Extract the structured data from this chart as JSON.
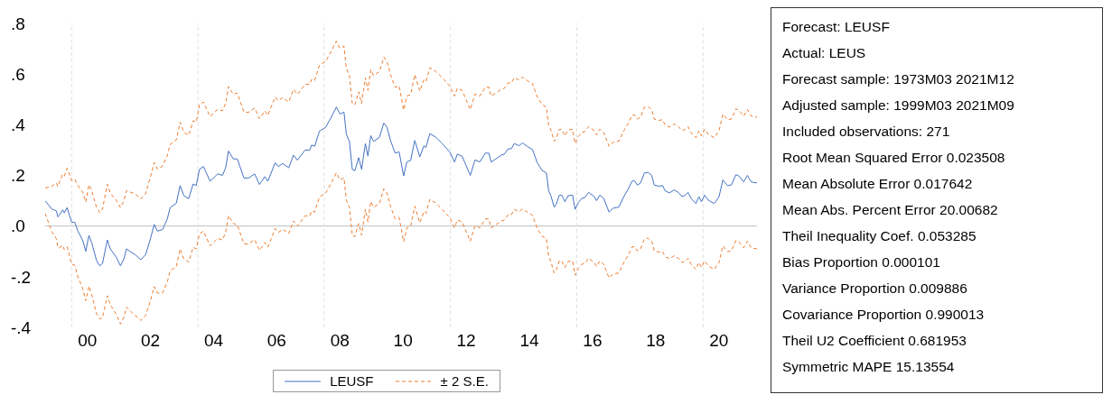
{
  "chart_data": {
    "type": "line",
    "x": [
      "1999-03-01",
      "1999-05-17",
      "1999-07-08",
      "1999-07-26",
      "1999-08-14",
      "1999-09-20",
      "1999-10-08",
      "1999-11-10",
      "2000-01-01",
      "2000-02-07",
      "2000-03-13",
      "2000-05-07",
      "2000-06-13",
      "2000-07-19",
      "2000-08-21",
      "2000-10-15",
      "2000-11-21",
      "2000-12-23",
      "2001-02-17",
      "2001-03-23",
      "2001-06-02",
      "2001-07-19",
      "2001-08-28",
      "2001-09-27",
      "2001-11-10",
      "2002-01-01",
      "2002-03-13",
      "2002-05-07",
      "2002-06-27",
      "2002-08-14",
      "2002-09-20",
      "2002-11-17",
      "2003-01-11",
      "2003-02-14",
      "2003-04-26",
      "2003-06-09",
      "2003-07-22",
      "2003-09-16",
      "2003-11-07",
      "2003-12-13",
      "2004-01-19",
      "2004-03-05",
      "2004-05-21",
      "2004-08-17",
      "2004-10-11",
      "2004-11-17",
      "2004-12-20",
      "2005-02-14",
      "2005-04-01",
      "2005-06-16",
      "2005-08-07",
      "2005-10-19",
      "2005-12-13",
      "2006-02-14",
      "2006-03-20",
      "2006-06-13",
      "2006-07-19",
      "2006-09-09",
      "2006-11-17",
      "2007-01-11",
      "2007-02-25",
      "2007-05-25",
      "2007-07-19",
      "2007-08-10",
      "2007-09-13",
      "2007-11-07",
      "2008-01-19",
      "2008-03-27",
      "2008-05-21",
      "2008-07-01",
      "2008-08-17",
      "2008-09-13",
      "2008-10-19",
      "2008-11-21",
      "2008-12-20",
      "2009-02-03",
      "2009-03-09",
      "2009-04-22",
      "2009-05-21",
      "2009-06-23",
      "2009-07-26",
      "2009-10-01",
      "2009-11-21",
      "2009-12-27",
      "2010-02-10",
      "2010-04-01",
      "2010-05-17",
      "2010-07-08",
      "2010-08-14",
      "2010-09-27",
      "2010-11-14",
      "2011-01-11",
      "2011-02-28",
      "2011-03-23",
      "2011-05-07",
      "2011-07-15",
      "2011-09-27",
      "2011-12-23",
      "2012-02-17",
      "2012-03-20",
      "2012-05-14",
      "2012-06-20",
      "2012-08-17",
      "2012-10-11",
      "2012-12-05",
      "2013-02-07",
      "2013-03-20",
      "2013-04-15",
      "2013-06-09",
      "2013-08-10",
      "2013-09-16",
      "2013-10-29",
      "2013-12-05",
      "2014-01-08",
      "2014-03-02",
      "2014-04-15",
      "2014-06-13",
      "2014-08-07",
      "2014-10-01",
      "2014-11-25",
      "2015-01-15",
      "2015-02-10",
      "2015-03-05",
      "2015-04-15",
      "2015-05-10",
      "2015-06-13",
      "2015-07-11",
      "2015-08-17",
      "2015-09-23",
      "2015-11-14",
      "2015-12-13",
      "2016-01-19",
      "2016-03-02",
      "2016-04-01",
      "2016-05-17",
      "2016-07-22",
      "2016-08-17",
      "2016-09-23",
      "2016-11-07",
      "2017-01-08",
      "2017-02-21",
      "2017-05-03",
      "2017-06-23",
      "2017-08-17",
      "2017-10-01",
      "2017-10-29",
      "2017-12-02",
      "2018-01-08",
      "2018-02-21",
      "2018-04-04",
      "2018-05-17",
      "2018-06-16",
      "2018-08-07",
      "2018-09-20",
      "2018-10-19",
      "2018-12-09",
      "2019-02-03",
      "2019-03-27",
      "2019-05-03",
      "2019-06-09",
      "2019-07-11",
      "2019-08-17",
      "2019-10-11",
      "2019-11-14",
      "2019-12-13",
      "2020-01-19",
      "2020-03-02",
      "2020-05-10",
      "2020-07-04",
      "2020-08-17",
      "2020-10-11",
      "2020-11-25",
      "2021-01-15",
      "2021-02-21",
      "2021-04-15",
      "2021-05-28",
      "2021-07-11",
      "2021-09-16"
    ],
    "series": [
      {
        "name": "LEUSF",
        "color": "#4472c4",
        "line_style": "solid",
        "values": [
          0.1,
          0.067,
          0.06,
          0.036,
          0.044,
          0.064,
          0.052,
          0.073,
          0.015,
          0.015,
          -0.02,
          -0.055,
          -0.1,
          -0.037,
          -0.066,
          -0.136,
          -0.157,
          -0.148,
          -0.055,
          -0.09,
          -0.124,
          -0.157,
          -0.13,
          -0.09,
          -0.101,
          -0.112,
          -0.133,
          -0.112,
          -0.055,
          0.006,
          -0.02,
          -0.014,
          0.027,
          0.073,
          0.09,
          0.16,
          0.12,
          0.108,
          0.166,
          0.16,
          0.224,
          0.235,
          0.177,
          0.206,
          0.2,
          0.23,
          0.296,
          0.265,
          0.265,
          0.19,
          0.189,
          0.206,
          0.164,
          0.195,
          0.177,
          0.25,
          0.235,
          0.247,
          0.23,
          0.28,
          0.26,
          0.3,
          0.3,
          0.32,
          0.315,
          0.375,
          0.39,
          0.433,
          0.47,
          0.442,
          0.45,
          0.363,
          0.334,
          0.224,
          0.218,
          0.27,
          0.224,
          0.326,
          0.276,
          0.357,
          0.334,
          0.35,
          0.407,
          0.39,
          0.334,
          0.288,
          0.293,
          0.198,
          0.253,
          0.259,
          0.338,
          0.273,
          0.317,
          0.31,
          0.365,
          0.351,
          0.326,
          0.293,
          0.253,
          0.284,
          0.276,
          0.247,
          0.2,
          0.261,
          0.253,
          0.288,
          0.288,
          0.253,
          0.265,
          0.28,
          0.284,
          0.305,
          0.305,
          0.326,
          0.317,
          0.328,
          0.313,
          0.302,
          0.25,
          0.22,
          0.209,
          0.139,
          0.122,
          0.075,
          0.087,
          0.122,
          0.122,
          0.096,
          0.12,
          0.122,
          0.066,
          0.093,
          0.11,
          0.112,
          0.133,
          0.116,
          0.1,
          0.122,
          0.11,
          0.055,
          0.07,
          0.075,
          0.113,
          0.145,
          0.177,
          0.179,
          0.162,
          0.17,
          0.209,
          0.212,
          0.2,
          0.162,
          0.157,
          0.16,
          0.139,
          0.131,
          0.143,
          0.131,
          0.116,
          0.122,
          0.133,
          0.108,
          0.089,
          0.116,
          0.096,
          0.122,
          0.102,
          0.089,
          0.116,
          0.182,
          0.159,
          0.163,
          0.203,
          0.197,
          0.174,
          0.2,
          0.174,
          0.17
        ]
      },
      {
        "name": "± 2 S.E.",
        "color": "#ed7d31",
        "line_style": "dashed",
        "values": [
          0.15,
          0.157,
          0.17,
          0.156,
          0.174,
          0.204,
          0.197,
          0.228,
          0.18,
          0.185,
          0.16,
          0.135,
          0.095,
          0.163,
          0.139,
          0.074,
          0.053,
          0.067,
          0.165,
          0.13,
          0.101,
          0.073,
          0.1,
          0.14,
          0.134,
          0.128,
          0.107,
          0.128,
          0.19,
          0.251,
          0.225,
          0.236,
          0.277,
          0.323,
          0.34,
          0.41,
          0.37,
          0.358,
          0.416,
          0.41,
          0.479,
          0.49,
          0.432,
          0.461,
          0.455,
          0.485,
          0.551,
          0.52,
          0.525,
          0.45,
          0.449,
          0.466,
          0.424,
          0.455,
          0.437,
          0.51,
          0.495,
          0.507,
          0.49,
          0.54,
          0.52,
          0.56,
          0.56,
          0.58,
          0.575,
          0.635,
          0.65,
          0.693,
          0.73,
          0.702,
          0.71,
          0.623,
          0.594,
          0.484,
          0.478,
          0.53,
          0.484,
          0.586,
          0.536,
          0.617,
          0.594,
          0.61,
          0.667,
          0.65,
          0.594,
          0.548,
          0.553,
          0.458,
          0.513,
          0.519,
          0.598,
          0.533,
          0.577,
          0.57,
          0.625,
          0.611,
          0.586,
          0.553,
          0.513,
          0.544,
          0.536,
          0.507,
          0.46,
          0.521,
          0.513,
          0.548,
          0.548,
          0.513,
          0.525,
          0.54,
          0.544,
          0.565,
          0.565,
          0.586,
          0.577,
          0.588,
          0.573,
          0.562,
          0.51,
          0.48,
          0.469,
          0.399,
          0.382,
          0.335,
          0.347,
          0.382,
          0.382,
          0.356,
          0.38,
          0.382,
          0.326,
          0.353,
          0.37,
          0.372,
          0.393,
          0.376,
          0.36,
          0.382,
          0.37,
          0.315,
          0.33,
          0.335,
          0.373,
          0.405,
          0.437,
          0.439,
          0.422,
          0.43,
          0.469,
          0.472,
          0.46,
          0.422,
          0.417,
          0.42,
          0.399,
          0.391,
          0.403,
          0.391,
          0.376,
          0.382,
          0.393,
          0.368,
          0.349,
          0.376,
          0.356,
          0.382,
          0.362,
          0.349,
          0.376,
          0.442,
          0.419,
          0.423,
          0.463,
          0.457,
          0.434,
          0.46,
          0.434,
          0.43
        ]
      },
      {
        "color": "#ed7d31",
        "line_style": "dashed",
        "values": [
          0.05,
          -0.023,
          -0.05,
          -0.084,
          -0.086,
          -0.076,
          -0.093,
          -0.082,
          -0.15,
          -0.155,
          -0.2,
          -0.245,
          -0.295,
          -0.237,
          -0.271,
          -0.346,
          -0.367,
          -0.363,
          -0.275,
          -0.31,
          -0.349,
          -0.387,
          -0.36,
          -0.32,
          -0.336,
          -0.352,
          -0.373,
          -0.352,
          -0.3,
          -0.239,
          -0.265,
          -0.264,
          -0.223,
          -0.177,
          -0.16,
          -0.09,
          -0.13,
          -0.142,
          -0.084,
          -0.09,
          -0.031,
          -0.02,
          -0.078,
          -0.049,
          -0.055,
          -0.025,
          0.041,
          0.01,
          0.005,
          -0.07,
          -0.071,
          -0.054,
          -0.096,
          -0.065,
          -0.083,
          -0.01,
          -0.025,
          -0.013,
          -0.03,
          0.02,
          0.0,
          0.04,
          0.04,
          0.06,
          0.055,
          0.115,
          0.13,
          0.173,
          0.21,
          0.182,
          0.19,
          0.103,
          0.074,
          -0.036,
          -0.042,
          0.01,
          -0.036,
          0.066,
          0.016,
          0.097,
          0.074,
          0.09,
          0.147,
          0.13,
          0.074,
          0.028,
          0.033,
          -0.062,
          -0.007,
          -0.001,
          0.078,
          0.013,
          0.057,
          0.05,
          0.105,
          0.091,
          0.066,
          0.033,
          -0.007,
          0.024,
          0.016,
          -0.013,
          -0.06,
          0.001,
          -0.007,
          0.028,
          0.028,
          -0.007,
          0.005,
          0.02,
          0.024,
          0.045,
          0.045,
          0.066,
          0.057,
          0.068,
          0.053,
          0.042,
          -0.01,
          -0.04,
          -0.051,
          -0.121,
          -0.138,
          -0.185,
          -0.173,
          -0.138,
          -0.138,
          -0.164,
          -0.14,
          -0.138,
          -0.194,
          -0.167,
          -0.15,
          -0.148,
          -0.127,
          -0.144,
          -0.16,
          -0.138,
          -0.15,
          -0.205,
          -0.19,
          -0.185,
          -0.147,
          -0.115,
          -0.083,
          -0.081,
          -0.098,
          -0.09,
          -0.051,
          -0.048,
          -0.06,
          -0.098,
          -0.103,
          -0.1,
          -0.121,
          -0.129,
          -0.117,
          -0.129,
          -0.144,
          -0.138,
          -0.127,
          -0.152,
          -0.171,
          -0.144,
          -0.164,
          -0.138,
          -0.158,
          -0.171,
          -0.144,
          -0.078,
          -0.101,
          -0.097,
          -0.057,
          -0.063,
          -0.086,
          -0.06,
          -0.086,
          -0.09
        ]
      }
    ],
    "xlim": [
      "1999-03-01",
      "2021-09-16"
    ],
    "xticks": [
      {
        "value": "2000-07-01",
        "label": "00"
      },
      {
        "value": "2002-07-01",
        "label": "02"
      },
      {
        "value": "2004-07-01",
        "label": "04"
      },
      {
        "value": "2006-07-01",
        "label": "06"
      },
      {
        "value": "2008-07-01",
        "label": "08"
      },
      {
        "value": "2010-07-01",
        "label": "10"
      },
      {
        "value": "2012-07-01",
        "label": "12"
      },
      {
        "value": "2014-07-01",
        "label": "14"
      },
      {
        "value": "2016-07-01",
        "label": "16"
      },
      {
        "value": "2018-07-01",
        "label": "18"
      },
      {
        "value": "2020-07-01",
        "label": "20"
      }
    ],
    "ylim": [
      -0.4,
      0.8
    ],
    "yticks": [
      {
        "value": -0.4,
        "label": "-.4"
      },
      {
        "value": -0.2,
        "label": "-.2"
      },
      {
        "value": 0,
        "label": ".0"
      },
      {
        "value": 0.2,
        "label": ".2"
      },
      {
        "value": 0.4,
        "label": ".4"
      },
      {
        "value": 0.6,
        "label": ".6"
      },
      {
        "value": 0.8,
        "label": ".8"
      }
    ],
    "ref_lines": [
      {
        "axis": "y",
        "value": 0,
        "color": "#bfbfbf",
        "line_style": "solid"
      },
      {
        "axis": "x",
        "value": "2000-01-01",
        "color": "#e0e0e0",
        "line_style": "dashed"
      },
      {
        "axis": "x",
        "value": "2004-01-01",
        "color": "#e0e0e0",
        "line_style": "dashed"
      },
      {
        "axis": "x",
        "value": "2008-01-01",
        "color": "#e0e0e0",
        "line_style": "dashed"
      },
      {
        "axis": "x",
        "value": "2012-01-01",
        "color": "#e0e0e0",
        "line_style": "dashed"
      },
      {
        "axis": "x",
        "value": "2016-01-01",
        "color": "#e0e0e0",
        "line_style": "dashed"
      },
      {
        "axis": "x",
        "value": "2020-01-01",
        "color": "#e0e0e0",
        "line_style": "dashed"
      }
    ],
    "legend": "bottom",
    "marker": "none",
    "annotations": [
      "Forecast: LEUSF",
      "Actual: LEUS",
      "Forecast sample: 1973M03 2021M12",
      "Adjusted sample: 1999M03 2021M09",
      "Included observations: 271",
      "Root Mean Squared Error 0.023508",
      "Mean Absolute Error 0.017642",
      "Mean Abs. Percent Error 20.00682",
      "Theil Inequality Coef. 0.053285",
      "Bias Proportion 0.000101",
      "Variance Proportion 0.009886",
      "Covariance Proportion 0.990013",
      "Theil U2 Coefficient 0.681953",
      "Symmetric MAPE 15.13554"
    ]
  }
}
